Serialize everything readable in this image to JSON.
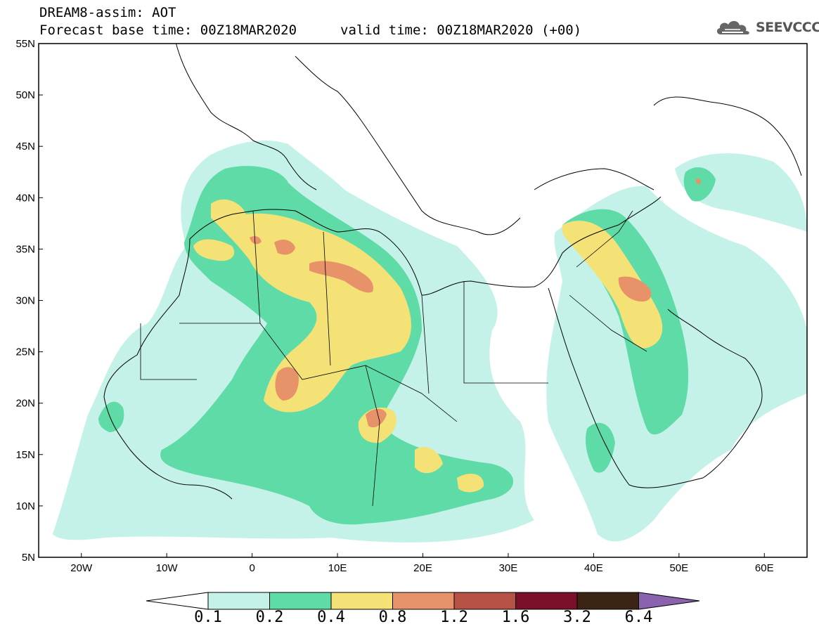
{
  "header": {
    "title_line1": "DREAM8-assim: AOT",
    "title_line2": "Forecast base time: 00Z18MAR2020",
    "valid_time": "valid time: 00Z18MAR2020 (+00)",
    "logo_text": "SEEVCCC",
    "logo_icon": "cloud-icon"
  },
  "map": {
    "lat_labels": [
      "55N",
      "50N",
      "45N",
      "40N",
      "35N",
      "30N",
      "25N",
      "20N",
      "15N",
      "10N",
      "5N"
    ],
    "lon_labels": [
      "20W",
      "10W",
      "0",
      "10E",
      "20E",
      "30E",
      "40E",
      "50E",
      "60E"
    ],
    "lat_range": [
      5,
      55
    ],
    "lon_range": [
      -25,
      65
    ]
  },
  "legend": {
    "labels": [
      "0.1",
      "0.2",
      "0.4",
      "0.8",
      "1.2",
      "1.6",
      "3.2",
      "6.4"
    ],
    "colors": [
      "#ffffff",
      "#c4f2e8",
      "#5fdba8",
      "#f4e276",
      "#e8926a",
      "#b65145",
      "#7a0f2a",
      "#3b2414",
      "#8a62ad"
    ]
  }
}
